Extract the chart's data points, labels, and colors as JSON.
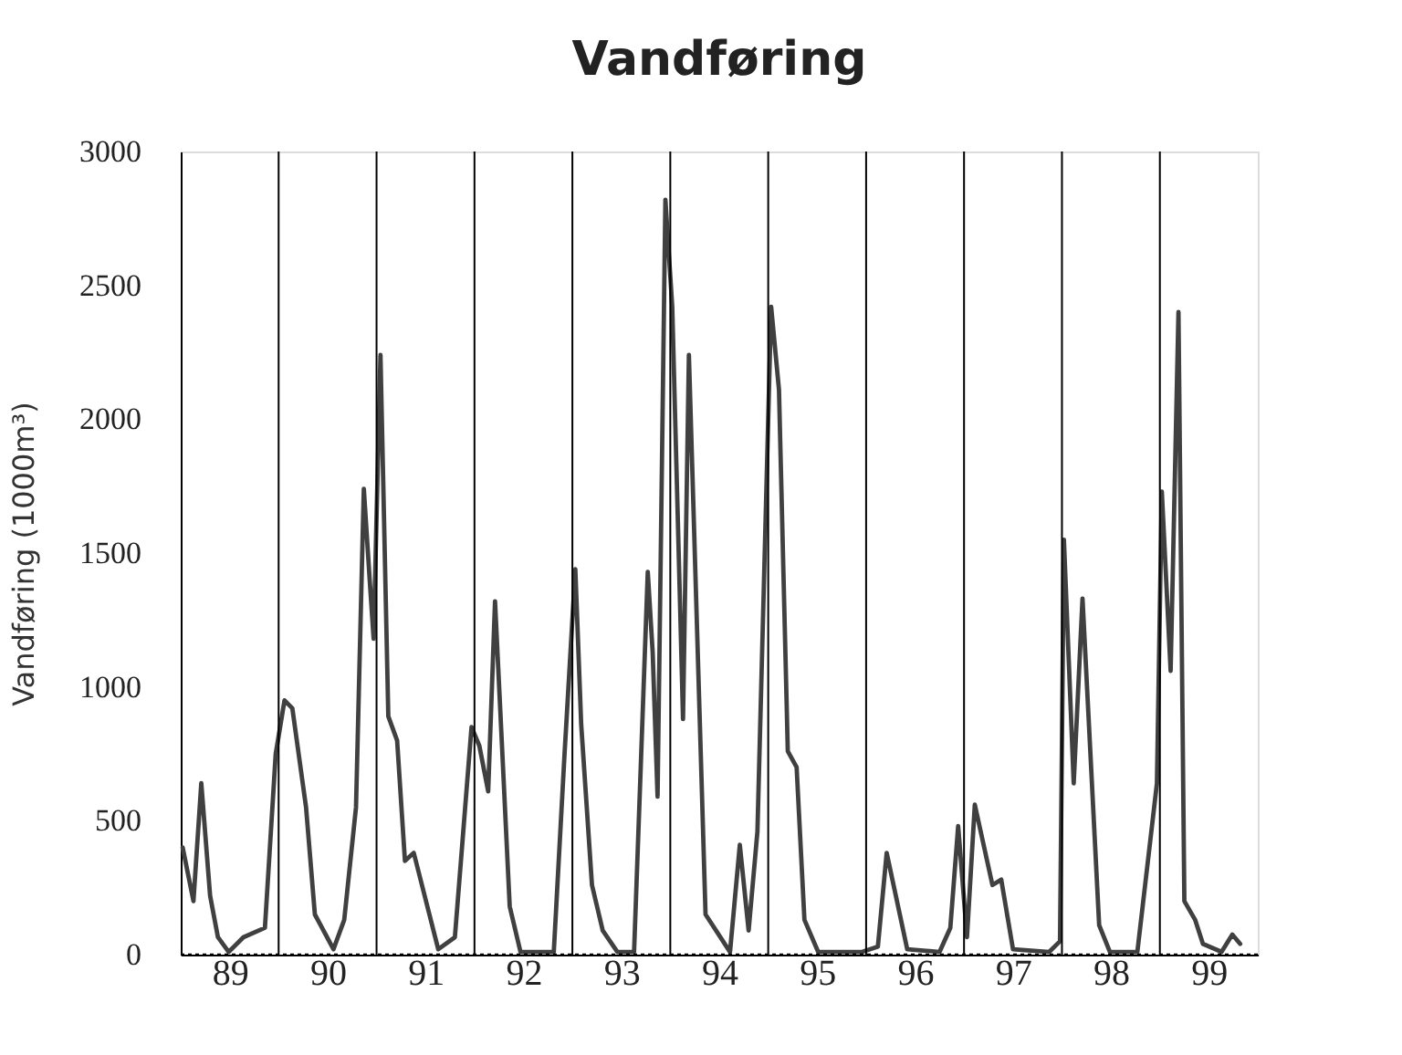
{
  "chart_data": {
    "type": "line",
    "title": "Vandføring",
    "ylabel": "Vandføring (1000m³)",
    "x": [
      89.02,
      89.13,
      89.21,
      89.3,
      89.38,
      89.49,
      89.64,
      89.86,
      89.97,
      90.06,
      90.14,
      90.28,
      90.37,
      90.48,
      90.56,
      90.67,
      90.79,
      90.87,
      90.93,
      90.97,
      91.04,
      91.12,
      91.21,
      91.29,
      91.38,
      91.63,
      91.8,
      91.97,
      92.05,
      92.14,
      92.21,
      92.36,
      92.47,
      92.81,
      92.92,
      93.03,
      93.09,
      93.2,
      93.31,
      93.46,
      93.63,
      93.77,
      93.82,
      93.87,
      93.95,
      94.02,
      94.13,
      94.19,
      94.36,
      94.61,
      94.71,
      94.8,
      94.89,
      95.03,
      95.11,
      95.2,
      95.29,
      95.37,
      95.51,
      95.96,
      96.12,
      96.21,
      96.42,
      96.75,
      96.86,
      96.94,
      97.03,
      97.11,
      97.29,
      97.38,
      97.5,
      97.87,
      97.98,
      98.02,
      98.12,
      98.21,
      98.38,
      98.49,
      98.77,
      98.97,
      99.02,
      99.11,
      99.19,
      99.25,
      99.36,
      99.44,
      99.63,
      99.74,
      99.82
    ],
    "series": [
      {
        "color": "#404040",
        "values": [
          400,
          200,
          640,
          220,
          65,
          10,
          65,
          100,
          750,
          950,
          920,
          550,
          150,
          75,
          20,
          130,
          550,
          1740,
          1400,
          1180,
          2240,
          890,
          800,
          350,
          380,
          20,
          65,
          850,
          780,
          610,
          1320,
          180,
          10,
          10,
          750,
          1440,
          860,
          260,
          90,
          10,
          10,
          1430,
          1130,
          590,
          2820,
          2420,
          880,
          2240,
          150,
          10,
          410,
          90,
          460,
          2420,
          2110,
          760,
          700,
          130,
          10,
          10,
          30,
          380,
          20,
          10,
          100,
          480,
          65,
          560,
          260,
          280,
          20,
          10,
          50,
          1550,
          640,
          1330,
          110,
          10,
          10,
          640,
          1730,
          1060,
          2400,
          200,
          130,
          40,
          10,
          75,
          40
        ]
      }
    ],
    "xlim": [
      89,
      100
    ],
    "xticks": [
      {
        "value": 89.5,
        "label": "89"
      },
      {
        "value": 90.5,
        "label": "90"
      },
      {
        "value": 91.5,
        "label": "91"
      },
      {
        "value": 92.5,
        "label": "92"
      },
      {
        "value": 93.5,
        "label": "93"
      },
      {
        "value": 94.5,
        "label": "94"
      },
      {
        "value": 95.5,
        "label": "95"
      },
      {
        "value": 96.5,
        "label": "96"
      },
      {
        "value": 97.5,
        "label": "97"
      },
      {
        "value": 98.5,
        "label": "98"
      },
      {
        "value": 99.5,
        "label": "99"
      }
    ],
    "ylim": [
      0,
      3000
    ],
    "yticks": [
      0,
      500,
      1000,
      1500,
      2000,
      2500,
      3000
    ],
    "grid": false,
    "line_style": "solid",
    "marker": "none",
    "ref_lines": [
      {
        "axis": "x",
        "value": 90,
        "color": "#000000"
      },
      {
        "axis": "x",
        "value": 91,
        "color": "#000000"
      },
      {
        "axis": "x",
        "value": 92,
        "color": "#000000"
      },
      {
        "axis": "x",
        "value": 93,
        "color": "#000000"
      },
      {
        "axis": "x",
        "value": 94,
        "color": "#000000"
      },
      {
        "axis": "x",
        "value": 95,
        "color": "#000000"
      },
      {
        "axis": "x",
        "value": 96,
        "color": "#000000"
      },
      {
        "axis": "x",
        "value": 97,
        "color": "#000000"
      },
      {
        "axis": "x",
        "value": 98,
        "color": "#000000"
      },
      {
        "axis": "x",
        "value": 99,
        "color": "#000000"
      },
      {
        "axis": "y",
        "value": 0,
        "color": "#000000",
        "line_style": "dotted"
      }
    ]
  }
}
